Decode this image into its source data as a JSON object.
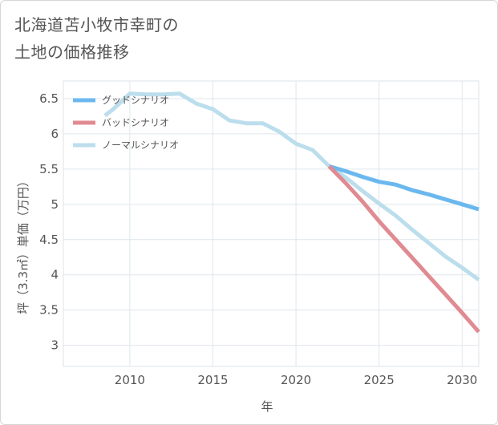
{
  "title_lines": [
    "北海道苫小牧市幸町の",
    "土地の価格推移"
  ],
  "chart_data": {
    "type": "line",
    "xlabel": "年",
    "ylabel": "坪（3.3㎡）単価（万円）",
    "xlim": [
      2006,
      2031
    ],
    "ylim": [
      2.7,
      6.75
    ],
    "x_ticks": [
      2010,
      2015,
      2020,
      2025,
      2030
    ],
    "y_ticks": [
      3,
      3.5,
      4,
      4.5,
      5,
      5.5,
      6,
      6.5
    ],
    "x_tick_labels": [
      "2010",
      "2015",
      "2020",
      "2025",
      "2030"
    ],
    "y_tick_labels": [
      "3",
      "3.5",
      "4",
      "4.5",
      "5",
      "5.5",
      "6",
      "6.5"
    ],
    "grid": true,
    "legend_position": "top-left",
    "series": [
      {
        "name": "グッドシナリオ",
        "color": "#6bb8ef",
        "x": [
          2022,
          2023,
          2024,
          2025,
          2026,
          2027,
          2028,
          2029,
          2030,
          2031
        ],
        "y": [
          5.54,
          5.47,
          5.39,
          5.32,
          5.28,
          5.2,
          5.14,
          5.07,
          5.0,
          4.93
        ]
      },
      {
        "name": "バッドシナリオ",
        "color": "#e08a92",
        "x": [
          2022,
          2023,
          2024,
          2025,
          2026,
          2027,
          2028,
          2029,
          2030,
          2031
        ],
        "y": [
          5.54,
          5.3,
          5.04,
          4.76,
          4.5,
          4.24,
          3.98,
          3.72,
          3.46,
          3.19
        ]
      },
      {
        "name": "ノーマルシナリオ",
        "color": "#bcdeec",
        "x": [
          2008.5,
          2009,
          2010,
          2011,
          2012,
          2013,
          2014,
          2015,
          2016,
          2017,
          2018,
          2019,
          2020,
          2021,
          2022,
          2023,
          2024,
          2025,
          2026,
          2027,
          2028,
          2029,
          2030,
          2031
        ],
        "y": [
          6.26,
          6.35,
          6.57,
          6.56,
          6.56,
          6.57,
          6.43,
          6.35,
          6.19,
          6.15,
          6.15,
          6.03,
          5.86,
          5.77,
          5.54,
          5.38,
          5.19,
          5.01,
          4.84,
          4.64,
          4.45,
          4.26,
          4.1,
          3.93
        ]
      }
    ]
  }
}
